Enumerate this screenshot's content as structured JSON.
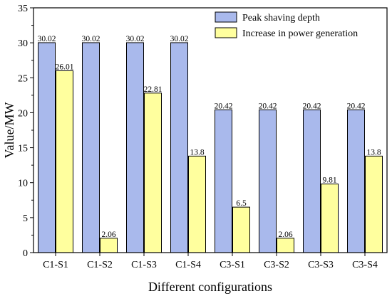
{
  "chart_data": {
    "type": "bar",
    "title": "",
    "xlabel": "Different configurations",
    "ylabel": "Value/MW",
    "ylim": [
      0,
      35
    ],
    "yticks": [
      0,
      5,
      10,
      15,
      20,
      25,
      30,
      35
    ],
    "categories": [
      "C1-S1",
      "C1-S2",
      "C1-S3",
      "C1-S4",
      "C3-S1",
      "C3-S2",
      "C3-S3",
      "C3-S4"
    ],
    "series": [
      {
        "name": "Peak shaving depth",
        "color": "#a9b9ec",
        "values": [
          30.02,
          30.02,
          30.02,
          30.02,
          20.42,
          20.42,
          20.42,
          20.42
        ],
        "labels": [
          "30.02",
          "30.02",
          "30.02",
          "30.02",
          "20.42",
          "20.42",
          "20.42",
          "20.42"
        ]
      },
      {
        "name": "Increase in power generation",
        "color": "#ffff9e",
        "values": [
          26.01,
          2.06,
          22.81,
          13.8,
          6.5,
          2.06,
          9.81,
          13.8
        ],
        "labels": [
          "26.01",
          "2.06",
          "22.81",
          "13.8",
          "6.5",
          "2.06",
          "9.81",
          "13.8"
        ]
      }
    ],
    "legend_position": "top-right",
    "grid": false
  }
}
